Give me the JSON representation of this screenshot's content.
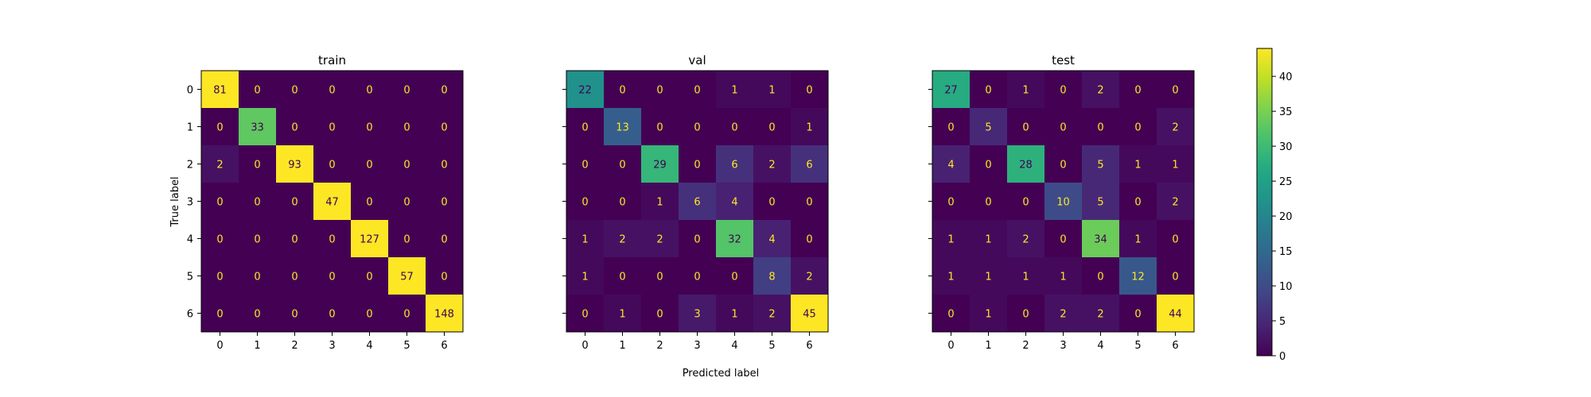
{
  "chart_data": {
    "type": "heatmap",
    "colormap": "viridis",
    "color_range": [
      0,
      44
    ],
    "xlabel": "Predicted label",
    "ylabel": "True label",
    "classes": [
      "0",
      "1",
      "2",
      "3",
      "4",
      "5",
      "6"
    ],
    "colorbar_ticks": [
      "0",
      "5",
      "10",
      "15",
      "20",
      "25",
      "30",
      "35",
      "40"
    ],
    "panels": [
      {
        "title": "train",
        "matrix": [
          [
            81,
            0,
            0,
            0,
            0,
            0,
            0
          ],
          [
            0,
            33,
            0,
            0,
            0,
            0,
            0
          ],
          [
            2,
            0,
            93,
            0,
            0,
            0,
            0
          ],
          [
            0,
            0,
            0,
            47,
            0,
            0,
            0
          ],
          [
            0,
            0,
            0,
            0,
            127,
            0,
            0
          ],
          [
            0,
            0,
            0,
            0,
            0,
            57,
            0
          ],
          [
            0,
            0,
            0,
            0,
            0,
            0,
            148
          ]
        ]
      },
      {
        "title": "val",
        "matrix": [
          [
            22,
            0,
            0,
            0,
            1,
            1,
            0
          ],
          [
            0,
            13,
            0,
            0,
            0,
            0,
            1
          ],
          [
            0,
            0,
            29,
            0,
            6,
            2,
            6
          ],
          [
            0,
            0,
            1,
            6,
            4,
            0,
            0
          ],
          [
            1,
            2,
            2,
            0,
            32,
            4,
            0
          ],
          [
            1,
            0,
            0,
            0,
            0,
            8,
            2
          ],
          [
            0,
            1,
            0,
            3,
            1,
            2,
            45
          ]
        ]
      },
      {
        "title": "test",
        "matrix": [
          [
            27,
            0,
            1,
            0,
            2,
            0,
            0
          ],
          [
            0,
            5,
            0,
            0,
            0,
            0,
            2
          ],
          [
            4,
            0,
            28,
            0,
            5,
            1,
            1
          ],
          [
            0,
            0,
            0,
            10,
            5,
            0,
            2
          ],
          [
            1,
            1,
            2,
            0,
            34,
            1,
            0
          ],
          [
            1,
            1,
            1,
            1,
            0,
            12,
            0
          ],
          [
            0,
            1,
            0,
            2,
            2,
            0,
            44
          ]
        ]
      }
    ]
  }
}
